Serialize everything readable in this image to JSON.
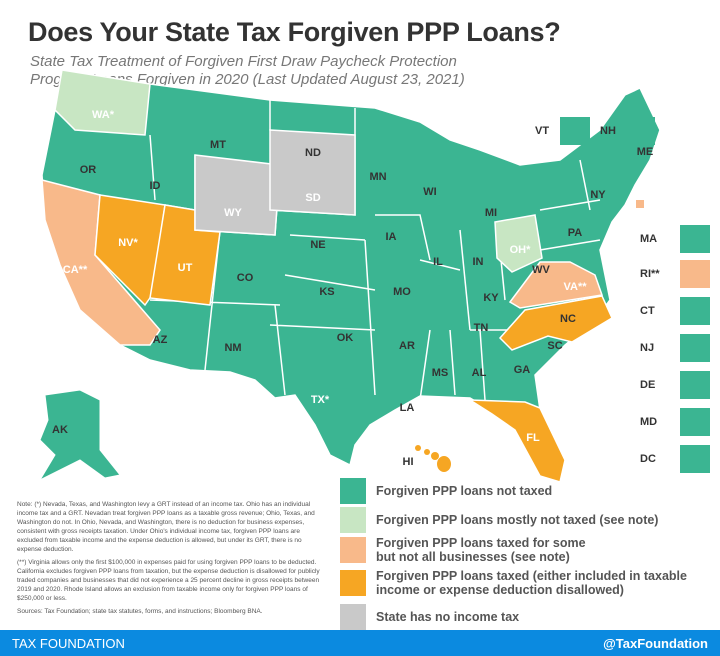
{
  "title": "Does Your State Tax Forgiven PPP Loans?",
  "subtitle": "State Tax Treatment of Forgiven First Draw Paycheck Protection Program Loans Forgiven in 2020 (Last Updated August 23, 2021)",
  "colors": {
    "not_taxed": "#3bb592",
    "mostly_not_taxed": "#c8e6c3",
    "some_taxed": "#f8b98a",
    "taxed": "#f6a623",
    "no_income_tax": "#c9c9c9",
    "footer": "#0b8ae0"
  },
  "legend": [
    {
      "key": "not_taxed",
      "label": "Forgiven PPP loans not taxed"
    },
    {
      "key": "mostly_not_taxed",
      "label": "Forgiven PPP loans mostly not taxed (see note)"
    },
    {
      "key": "some_taxed",
      "label": "Forgiven PPP loans taxed for some but not all businesses (see note)"
    },
    {
      "key": "taxed",
      "label": "Forgiven PPP loans taxed (either included in taxable income or expense deduction disallowed)"
    },
    {
      "key": "no_income_tax",
      "label": "State has no income tax"
    }
  ],
  "states": {
    "WA": "WA*",
    "OR": "OR",
    "CA": "CA**",
    "NV": "NV*",
    "ID": "ID",
    "MT": "MT",
    "WY": "WY",
    "UT": "UT",
    "AZ": "AZ",
    "CO": "CO",
    "NM": "NM",
    "ND": "ND",
    "SD": "SD",
    "NE": "NE",
    "KS": "KS",
    "OK": "OK",
    "TX": "TX*",
    "MN": "MN",
    "IA": "IA",
    "MO": "MO",
    "AR": "AR",
    "LA": "LA",
    "WI": "WI",
    "IL": "IL",
    "MS": "MS",
    "MI": "MI",
    "IN": "IN",
    "KY": "KY",
    "TN": "TN",
    "AL": "AL",
    "OH": "OH*",
    "GA": "GA",
    "FL": "FL",
    "SC": "SC",
    "NC": "NC",
    "VA": "VA**",
    "WV": "WV",
    "PA": "PA",
    "NY": "NY",
    "ME": "ME",
    "AK": "AK",
    "HI": "HI"
  },
  "small_states": {
    "VT": "VT",
    "NH": "NH",
    "MA": "MA",
    "RI": "RI**",
    "CT": "CT",
    "NJ": "NJ",
    "DE": "DE",
    "MD": "MD",
    "DC": "DC"
  },
  "notes": [
    "Note: (*) Nevada, Texas, and Washington levy a GRT instead of an income tax. Ohio has an individual income tax and a GRT. Nevadan treat forgiven PPP loans as a taxable gross revenue; Ohio, Texas, and Washington do not. In Ohio, Nevada, and Washington, there is no deduction for business expenses, consistent with gross receipts taxation. Under Ohio's individual income tax, forgiven PPP loans are excluded from taxable income and the expense deduction is allowed, but under its GRT, there is no expense deduction.",
    "(**) Virginia allows only the first $100,000 in expenses paid for using forgiven PPP loans to be deducted. California excludes forgiven PPP loans from taxation, but the expense deduction is disallowed for publicly traded companies and businesses that did not experience a 25 percent decline in gross receipts between 2019 and 2020. Rhode Island allows an exclusion from taxable income only for forgiven PPP loans of $250,000 or less.",
    "Sources: Tax Foundation; state tax statutes, forms, and instructions; Bloomberg BNA."
  ],
  "footer": {
    "left": "TAX FOUNDATION",
    "right": "@TaxFoundation"
  }
}
